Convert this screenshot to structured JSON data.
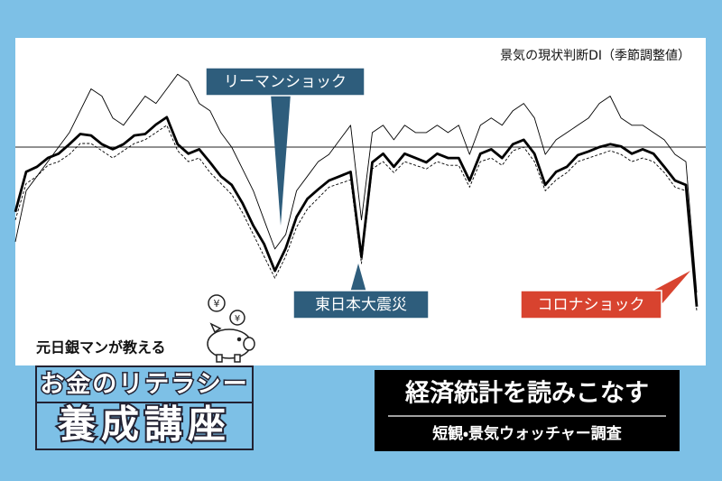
{
  "chart_data": {
    "type": "line",
    "title": "景気の現状判断DI（季節調整値）",
    "ylim": [
      20,
      65
    ],
    "reference_line": 50,
    "series": [
      {
        "color": "#000000",
        "line_style": "thin",
        "values": [
          37,
          44,
          46,
          48,
          50,
          52,
          55,
          58,
          57,
          54,
          53,
          55,
          57,
          56,
          58,
          60,
          59,
          56,
          55,
          52,
          50,
          47,
          44,
          40,
          36,
          38,
          44,
          46,
          48,
          49,
          51,
          53,
          40,
          52,
          53,
          51,
          53,
          52,
          52,
          53,
          52,
          53,
          49,
          53,
          54,
          53,
          55,
          56,
          54,
          49,
          51,
          52,
          53,
          54,
          56,
          57,
          54,
          53,
          53,
          52,
          51,
          49,
          48,
          30
        ]
      },
      {
        "color": "#000000",
        "line_style": "thick",
        "values": [
          41.1,
          46.6,
          47.3,
          48.5,
          49.1,
          50.4,
          51.8,
          51.6,
          50.4,
          49.7,
          50.4,
          51.6,
          51.8,
          53.1,
          54.1,
          50.4,
          49.1,
          49.7,
          47.9,
          46.0,
          44.8,
          42.3,
          39.2,
          36.7,
          33.0,
          36.1,
          40.4,
          42.9,
          44.2,
          45.4,
          46.0,
          46.6,
          34.9,
          47.9,
          49.1,
          47.3,
          49.1,
          48.5,
          47.9,
          49.1,
          48.5,
          48.5,
          45.4,
          49.1,
          49.7,
          48.5,
          50.4,
          51.0,
          49.1,
          44.8,
          46.6,
          47.3,
          48.9,
          49.4,
          50.0,
          50.4,
          50.1,
          49.1,
          49.7,
          49.1,
          47.3,
          45.4,
          44.8,
          28.1
        ]
      },
      {
        "color": "#000000",
        "line_style": "dashed",
        "values": [
          40,
          45,
          46,
          47.5,
          48,
          49,
          50.5,
          50.5,
          49.5,
          48.5,
          49.5,
          50.5,
          51,
          52,
          53,
          49.5,
          48,
          48.5,
          46.5,
          45,
          43.5,
          41,
          38,
          35,
          32,
          35,
          39,
          41.5,
          43,
          44.5,
          45,
          45.5,
          34,
          47,
          48,
          46.5,
          48,
          47.5,
          47,
          48,
          47.5,
          47.5,
          44.5,
          48,
          48.5,
          47.5,
          49.5,
          50,
          48,
          44,
          45.5,
          46.5,
          48,
          48.5,
          49,
          49.5,
          49,
          48,
          48.5,
          48,
          46.5,
          44.5,
          44,
          27.5
        ]
      }
    ],
    "annotations": [
      "リーマンショック",
      "東日本大震災",
      "コロナショック"
    ]
  },
  "branding": {
    "tagline": "元日銀マンが教える",
    "series_title_top": "お金のリテラシー",
    "series_title_main": "養成講座"
  },
  "episode": {
    "title": "経済統計を読みこなす",
    "subtitle": "短観・景気ウォッチャー調査"
  }
}
